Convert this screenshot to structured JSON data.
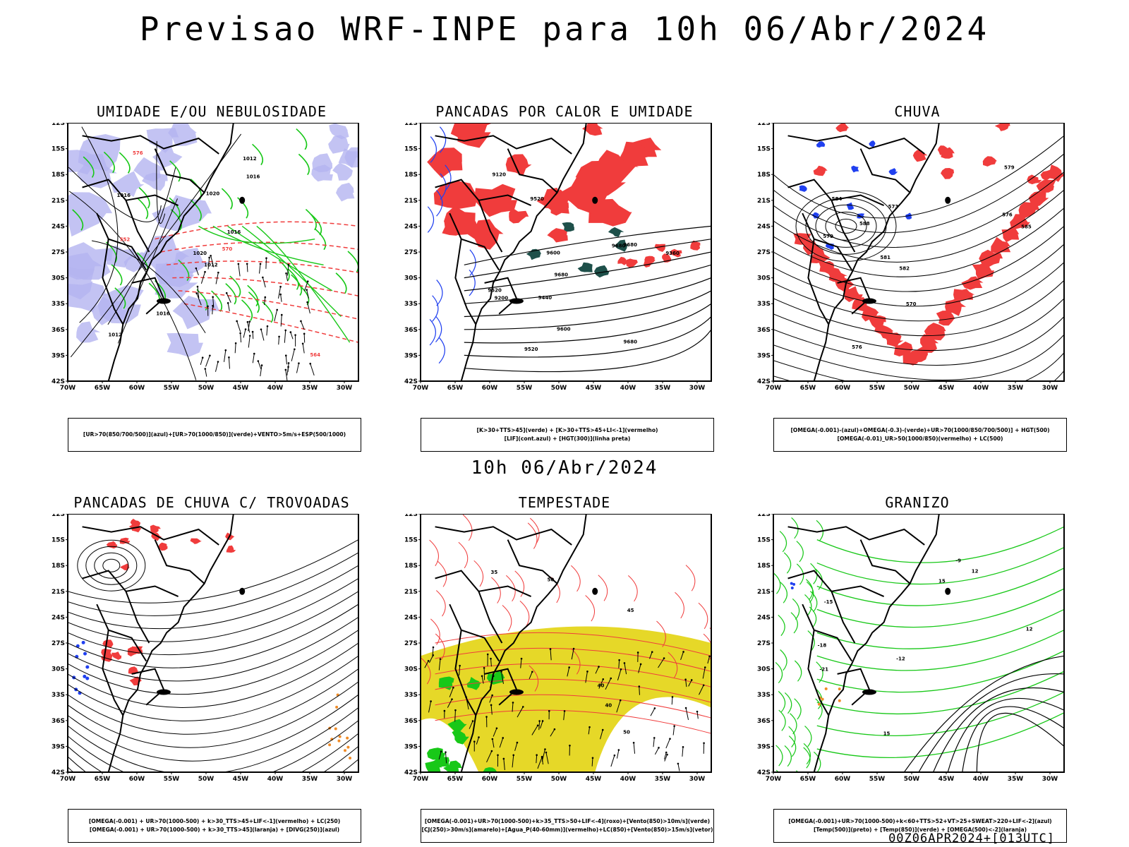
{
  "header": {
    "title": "Previsao WRF-INPE  para 10h 06/Abr/2024"
  },
  "middle_date": "10h 06/Abr/2024",
  "footer": "00Z06APR2024+[013UTC]",
  "axes": {
    "lat_labels": [
      "12S",
      "15S",
      "18S",
      "21S",
      "24S",
      "27S",
      "30S",
      "33S",
      "36S",
      "39S",
      "42S"
    ],
    "lon_labels": [
      "70W",
      "65W",
      "60W",
      "55W",
      "50W",
      "45W",
      "40W",
      "35W",
      "30W"
    ]
  },
  "colors": {
    "red": "#f03c3c",
    "green": "#18c818",
    "blue": "#2040f0",
    "lavender": "#b4b4f0",
    "darkgreen": "#1e504a",
    "yellow": "#e6d828",
    "orange": "#f08c28"
  },
  "panels": [
    {
      "title": "UMIDADE E/OU NEBULOSIDADE",
      "legend": [
        "[UR>70(850/700/500)](azul)+[UR>70(1000/850)](verde)+VENTO>5m/s+ESP(500/1000)"
      ],
      "contour_labels": [
        "1012",
        "1016",
        "1020",
        "1012",
        "1016",
        "1016",
        "1012",
        "1020",
        "1016",
        "570",
        "576",
        "564",
        "552"
      ]
    },
    {
      "title": "PANCADAS POR CALOR E UMIDADE",
      "legend": [
        "[K>30+TTS>45](verde) + [K>30+TTS>45+LI<-1](vermelho)",
        "[LIF](cont.azul) + [HGT(300)](linha preta)"
      ],
      "contour_labels": [
        "9680",
        "9680",
        "9680",
        "9680",
        "9600",
        "9520",
        "9600",
        "9520",
        "9440",
        "9360",
        "9200",
        "9120",
        "9520"
      ]
    },
    {
      "title": "CHUVA",
      "legend": [
        "[OMEGA(-0.001)-(azul)+OMEGA(-0.3)-(verde)+UR>70(1000/850/700/500)] + HGT(500)",
        "[OMEGA(-0.01)_UR>50(1000/850)(vermelho) + LC(500)"
      ],
      "contour_labels": [
        "585",
        "582",
        "579",
        "576",
        "573",
        "570",
        "576",
        "579",
        "584",
        "581",
        "588"
      ]
    },
    {
      "title": "PANCADAS DE CHUVA C/ TROVOADAS",
      "legend": [
        "[OMEGA(-0.001) + UR>70(1000-500) + k>30_TTS>45+LIF<-1](vermelho) + LC(250)",
        "[OMEGA(-0.001) + UR>70(1000-500) + k>30_TTS>45](laranja) + [DIVG(250)](azul)"
      ],
      "contour_labels": []
    },
    {
      "title": "TEMPESTADE",
      "legend": [
        "[OMEGA(-0.001)+UR>70(1000-500)+k>35_TTS>50+LIF<-4](roxo)+[Vento(850)>10m/s](verde)",
        "[CJ(250)>30m/s](amarelo)+[Agua_P(40-60mm)](vermelho)+LC(850)+[Vento(850)>15m/s](vetor)"
      ],
      "contour_labels": [
        "50",
        "50",
        "45",
        "40",
        "35",
        "40"
      ]
    },
    {
      "title": "GRANIZO",
      "legend": [
        "[OMEGA(-0.001)+UR>70(1000-500)+k<60+TTS>52+VT>25+SWEAT>220+LIF<-2](azul)",
        "[Temp(500)](preto) + [Temp(850)](verde) + [OMEGA(500)<-2](laranja)"
      ],
      "contour_labels": [
        "-9",
        "-12",
        "-15",
        "-18",
        "-21",
        "12",
        "15",
        "12",
        "15"
      ]
    }
  ]
}
